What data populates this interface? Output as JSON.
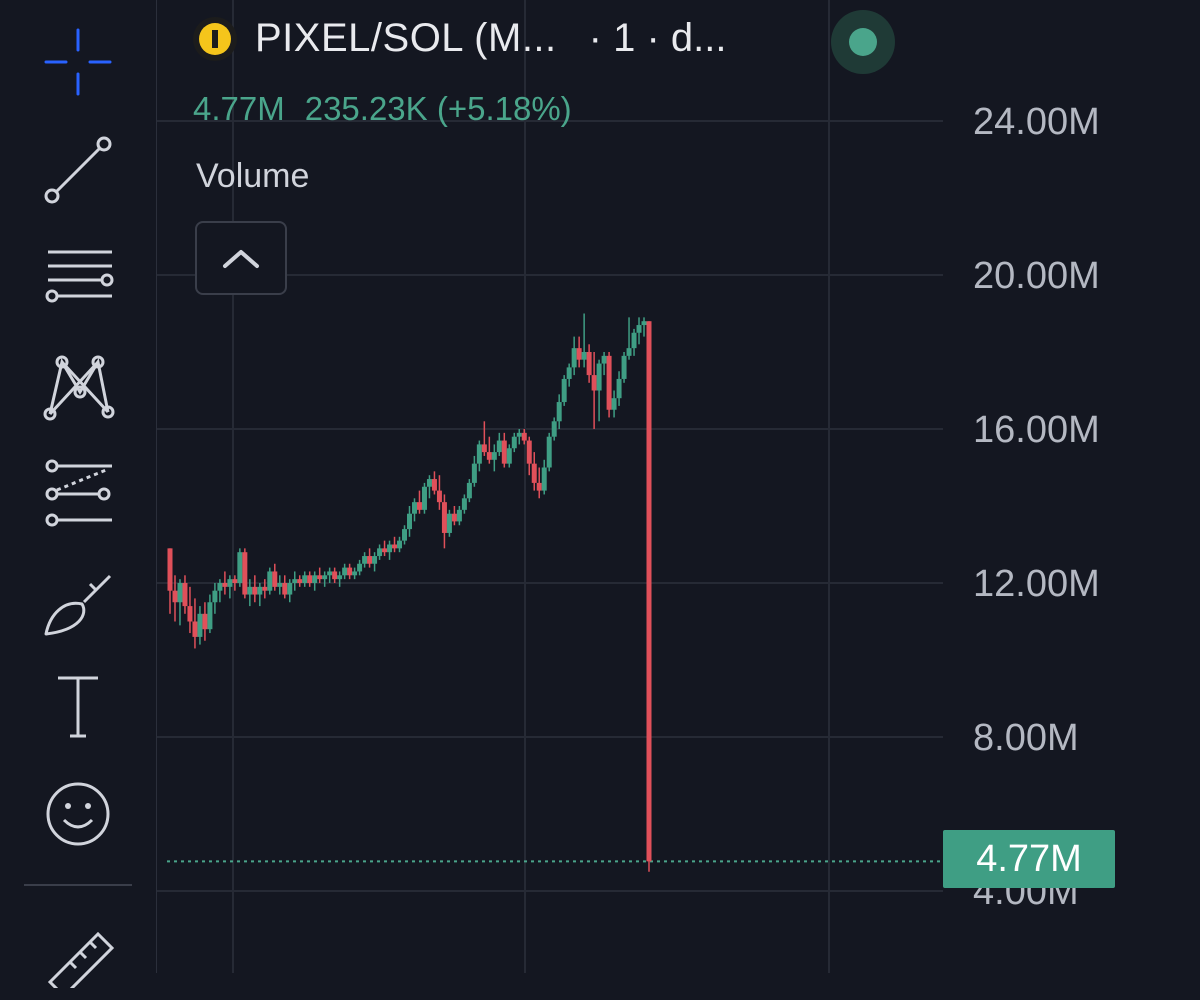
{
  "header": {
    "symbol": "PIXEL/SOL (M...",
    "interval": "· 1 · d...",
    "status_color": "#4aa58b"
  },
  "legend": {
    "last_value": "4.77M",
    "change": "235.23K (+5.18%)"
  },
  "indicator": {
    "name": "Volume",
    "collapse_icon": "chevron-up-icon"
  },
  "price_axis": {
    "labels": [
      "24.00M",
      "20.00M",
      "16.00M",
      "12.00M",
      "8.00M",
      "4.00M"
    ],
    "current_price_label": "4.77M"
  },
  "toolbar": {
    "tools": [
      {
        "name": "crosshair-icon",
        "active": true
      },
      {
        "name": "trend-line-icon"
      },
      {
        "name": "horizontal-lines-icon"
      },
      {
        "name": "pattern-icon"
      },
      {
        "name": "projection-icon"
      },
      {
        "name": "brush-icon"
      },
      {
        "name": "text-icon"
      },
      {
        "name": "emoji-icon"
      },
      {
        "name": "ruler-icon"
      }
    ]
  },
  "colors": {
    "background": "#141721",
    "up": "#3f9e84",
    "down": "#e0505a",
    "accent": "#2962ff"
  },
  "chart_data": {
    "type": "candlestick",
    "ylim": [
      4000000,
      24000000
    ],
    "last_price": 4770000,
    "candles": [
      [
        12.9,
        12.9,
        11.2,
        11.8
      ],
      [
        11.8,
        12.2,
        11.0,
        11.5
      ],
      [
        11.5,
        12.1,
        10.9,
        12.0
      ],
      [
        12.0,
        12.2,
        11.2,
        11.4
      ],
      [
        11.4,
        11.9,
        10.7,
        11.0
      ],
      [
        11.0,
        11.6,
        10.3,
        10.6
      ],
      [
        10.6,
        11.4,
        10.4,
        11.2
      ],
      [
        11.2,
        11.5,
        10.5,
        10.8
      ],
      [
        10.8,
        11.7,
        10.7,
        11.5
      ],
      [
        11.5,
        12.0,
        11.2,
        11.8
      ],
      [
        11.8,
        12.1,
        11.5,
        12.0
      ],
      [
        12.0,
        12.3,
        11.7,
        11.9
      ],
      [
        11.9,
        12.2,
        11.6,
        12.1
      ],
      [
        12.1,
        12.2,
        11.8,
        12.0
      ],
      [
        12.0,
        12.9,
        11.9,
        12.8
      ],
      [
        12.8,
        12.9,
        11.6,
        11.7
      ],
      [
        11.7,
        12.1,
        11.4,
        11.9
      ],
      [
        11.9,
        12.2,
        11.5,
        11.7
      ],
      [
        11.7,
        12.0,
        11.4,
        11.9
      ],
      [
        11.9,
        12.1,
        11.6,
        11.8
      ],
      [
        11.8,
        12.4,
        11.7,
        12.3
      ],
      [
        12.3,
        12.5,
        11.8,
        11.9
      ],
      [
        11.9,
        12.2,
        11.7,
        12.0
      ],
      [
        12.0,
        12.2,
        11.6,
        11.7
      ],
      [
        11.7,
        12.1,
        11.5,
        12.0
      ],
      [
        12.0,
        12.3,
        11.8,
        12.1
      ],
      [
        12.1,
        12.2,
        11.9,
        12.0
      ],
      [
        12.0,
        12.3,
        11.9,
        12.2
      ],
      [
        12.2,
        12.3,
        11.9,
        12.0
      ],
      [
        12.0,
        12.3,
        11.8,
        12.2
      ],
      [
        12.2,
        12.4,
        12.0,
        12.1
      ],
      [
        12.1,
        12.3,
        11.9,
        12.2
      ],
      [
        12.2,
        12.4,
        12.0,
        12.3
      ],
      [
        12.3,
        12.4,
        12.0,
        12.1
      ],
      [
        12.1,
        12.3,
        11.9,
        12.2
      ],
      [
        12.2,
        12.5,
        12.1,
        12.4
      ],
      [
        12.4,
        12.5,
        12.1,
        12.2
      ],
      [
        12.2,
        12.4,
        12.1,
        12.3
      ],
      [
        12.3,
        12.6,
        12.2,
        12.5
      ],
      [
        12.5,
        12.8,
        12.4,
        12.7
      ],
      [
        12.7,
        12.9,
        12.4,
        12.5
      ],
      [
        12.5,
        12.8,
        12.3,
        12.7
      ],
      [
        12.7,
        13.0,
        12.6,
        12.9
      ],
      [
        12.9,
        13.1,
        12.7,
        12.8
      ],
      [
        12.8,
        13.1,
        12.6,
        13.0
      ],
      [
        13.0,
        13.2,
        12.8,
        12.9
      ],
      [
        12.9,
        13.2,
        12.8,
        13.1
      ],
      [
        13.1,
        13.5,
        13.0,
        13.4
      ],
      [
        13.4,
        14.0,
        13.2,
        13.8
      ],
      [
        13.8,
        14.2,
        13.6,
        14.1
      ],
      [
        14.1,
        14.4,
        13.8,
        13.9
      ],
      [
        13.9,
        14.6,
        13.8,
        14.5
      ],
      [
        14.5,
        14.8,
        14.2,
        14.7
      ],
      [
        14.7,
        14.9,
        14.3,
        14.4
      ],
      [
        14.4,
        14.8,
        13.9,
        14.1
      ],
      [
        14.1,
        14.3,
        12.9,
        13.3
      ],
      [
        13.3,
        13.9,
        13.2,
        13.8
      ],
      [
        13.8,
        14.0,
        13.5,
        13.6
      ],
      [
        13.6,
        14.0,
        13.5,
        13.9
      ],
      [
        13.9,
        14.3,
        13.8,
        14.2
      ],
      [
        14.2,
        14.7,
        14.1,
        14.6
      ],
      [
        14.6,
        15.3,
        14.5,
        15.1
      ],
      [
        15.1,
        15.7,
        14.9,
        15.6
      ],
      [
        15.6,
        16.2,
        15.3,
        15.4
      ],
      [
        15.4,
        15.8,
        15.1,
        15.2
      ],
      [
        15.2,
        15.6,
        14.9,
        15.4
      ],
      [
        15.4,
        15.9,
        15.3,
        15.7
      ],
      [
        15.7,
        15.9,
        15.0,
        15.1
      ],
      [
        15.1,
        15.6,
        15.0,
        15.5
      ],
      [
        15.5,
        15.9,
        15.4,
        15.8
      ],
      [
        15.8,
        16.0,
        15.6,
        15.9
      ],
      [
        15.9,
        16.0,
        15.6,
        15.7
      ],
      [
        15.7,
        15.8,
        14.8,
        15.1
      ],
      [
        15.1,
        15.4,
        14.4,
        14.6
      ],
      [
        14.6,
        15.0,
        14.2,
        14.4
      ],
      [
        14.4,
        15.2,
        14.3,
        15.0
      ],
      [
        15.0,
        15.9,
        14.9,
        15.8
      ],
      [
        15.8,
        16.3,
        15.7,
        16.2
      ],
      [
        16.2,
        16.9,
        16.0,
        16.7
      ],
      [
        16.7,
        17.4,
        16.6,
        17.3
      ],
      [
        17.3,
        17.7,
        17.1,
        17.6
      ],
      [
        17.6,
        18.4,
        17.4,
        18.1
      ],
      [
        18.1,
        18.4,
        17.6,
        17.8
      ],
      [
        17.8,
        19.0,
        17.6,
        18.0
      ],
      [
        18.0,
        18.2,
        17.2,
        17.4
      ],
      [
        17.4,
        18.0,
        16.0,
        17.0
      ],
      [
        17.0,
        17.8,
        16.2,
        17.7
      ],
      [
        17.7,
        18.0,
        17.4,
        17.9
      ],
      [
        17.9,
        18.0,
        16.3,
        16.5
      ],
      [
        16.5,
        17.0,
        16.3,
        16.8
      ],
      [
        16.8,
        17.5,
        16.6,
        17.3
      ],
      [
        17.3,
        18.0,
        17.2,
        17.9
      ],
      [
        17.9,
        18.9,
        17.8,
        18.1
      ],
      [
        18.1,
        18.6,
        17.9,
        18.5
      ],
      [
        18.5,
        18.9,
        18.2,
        18.7
      ],
      [
        18.7,
        18.9,
        18.4,
        18.8
      ],
      [
        18.8,
        18.8,
        4.5,
        4.77
      ]
    ]
  }
}
